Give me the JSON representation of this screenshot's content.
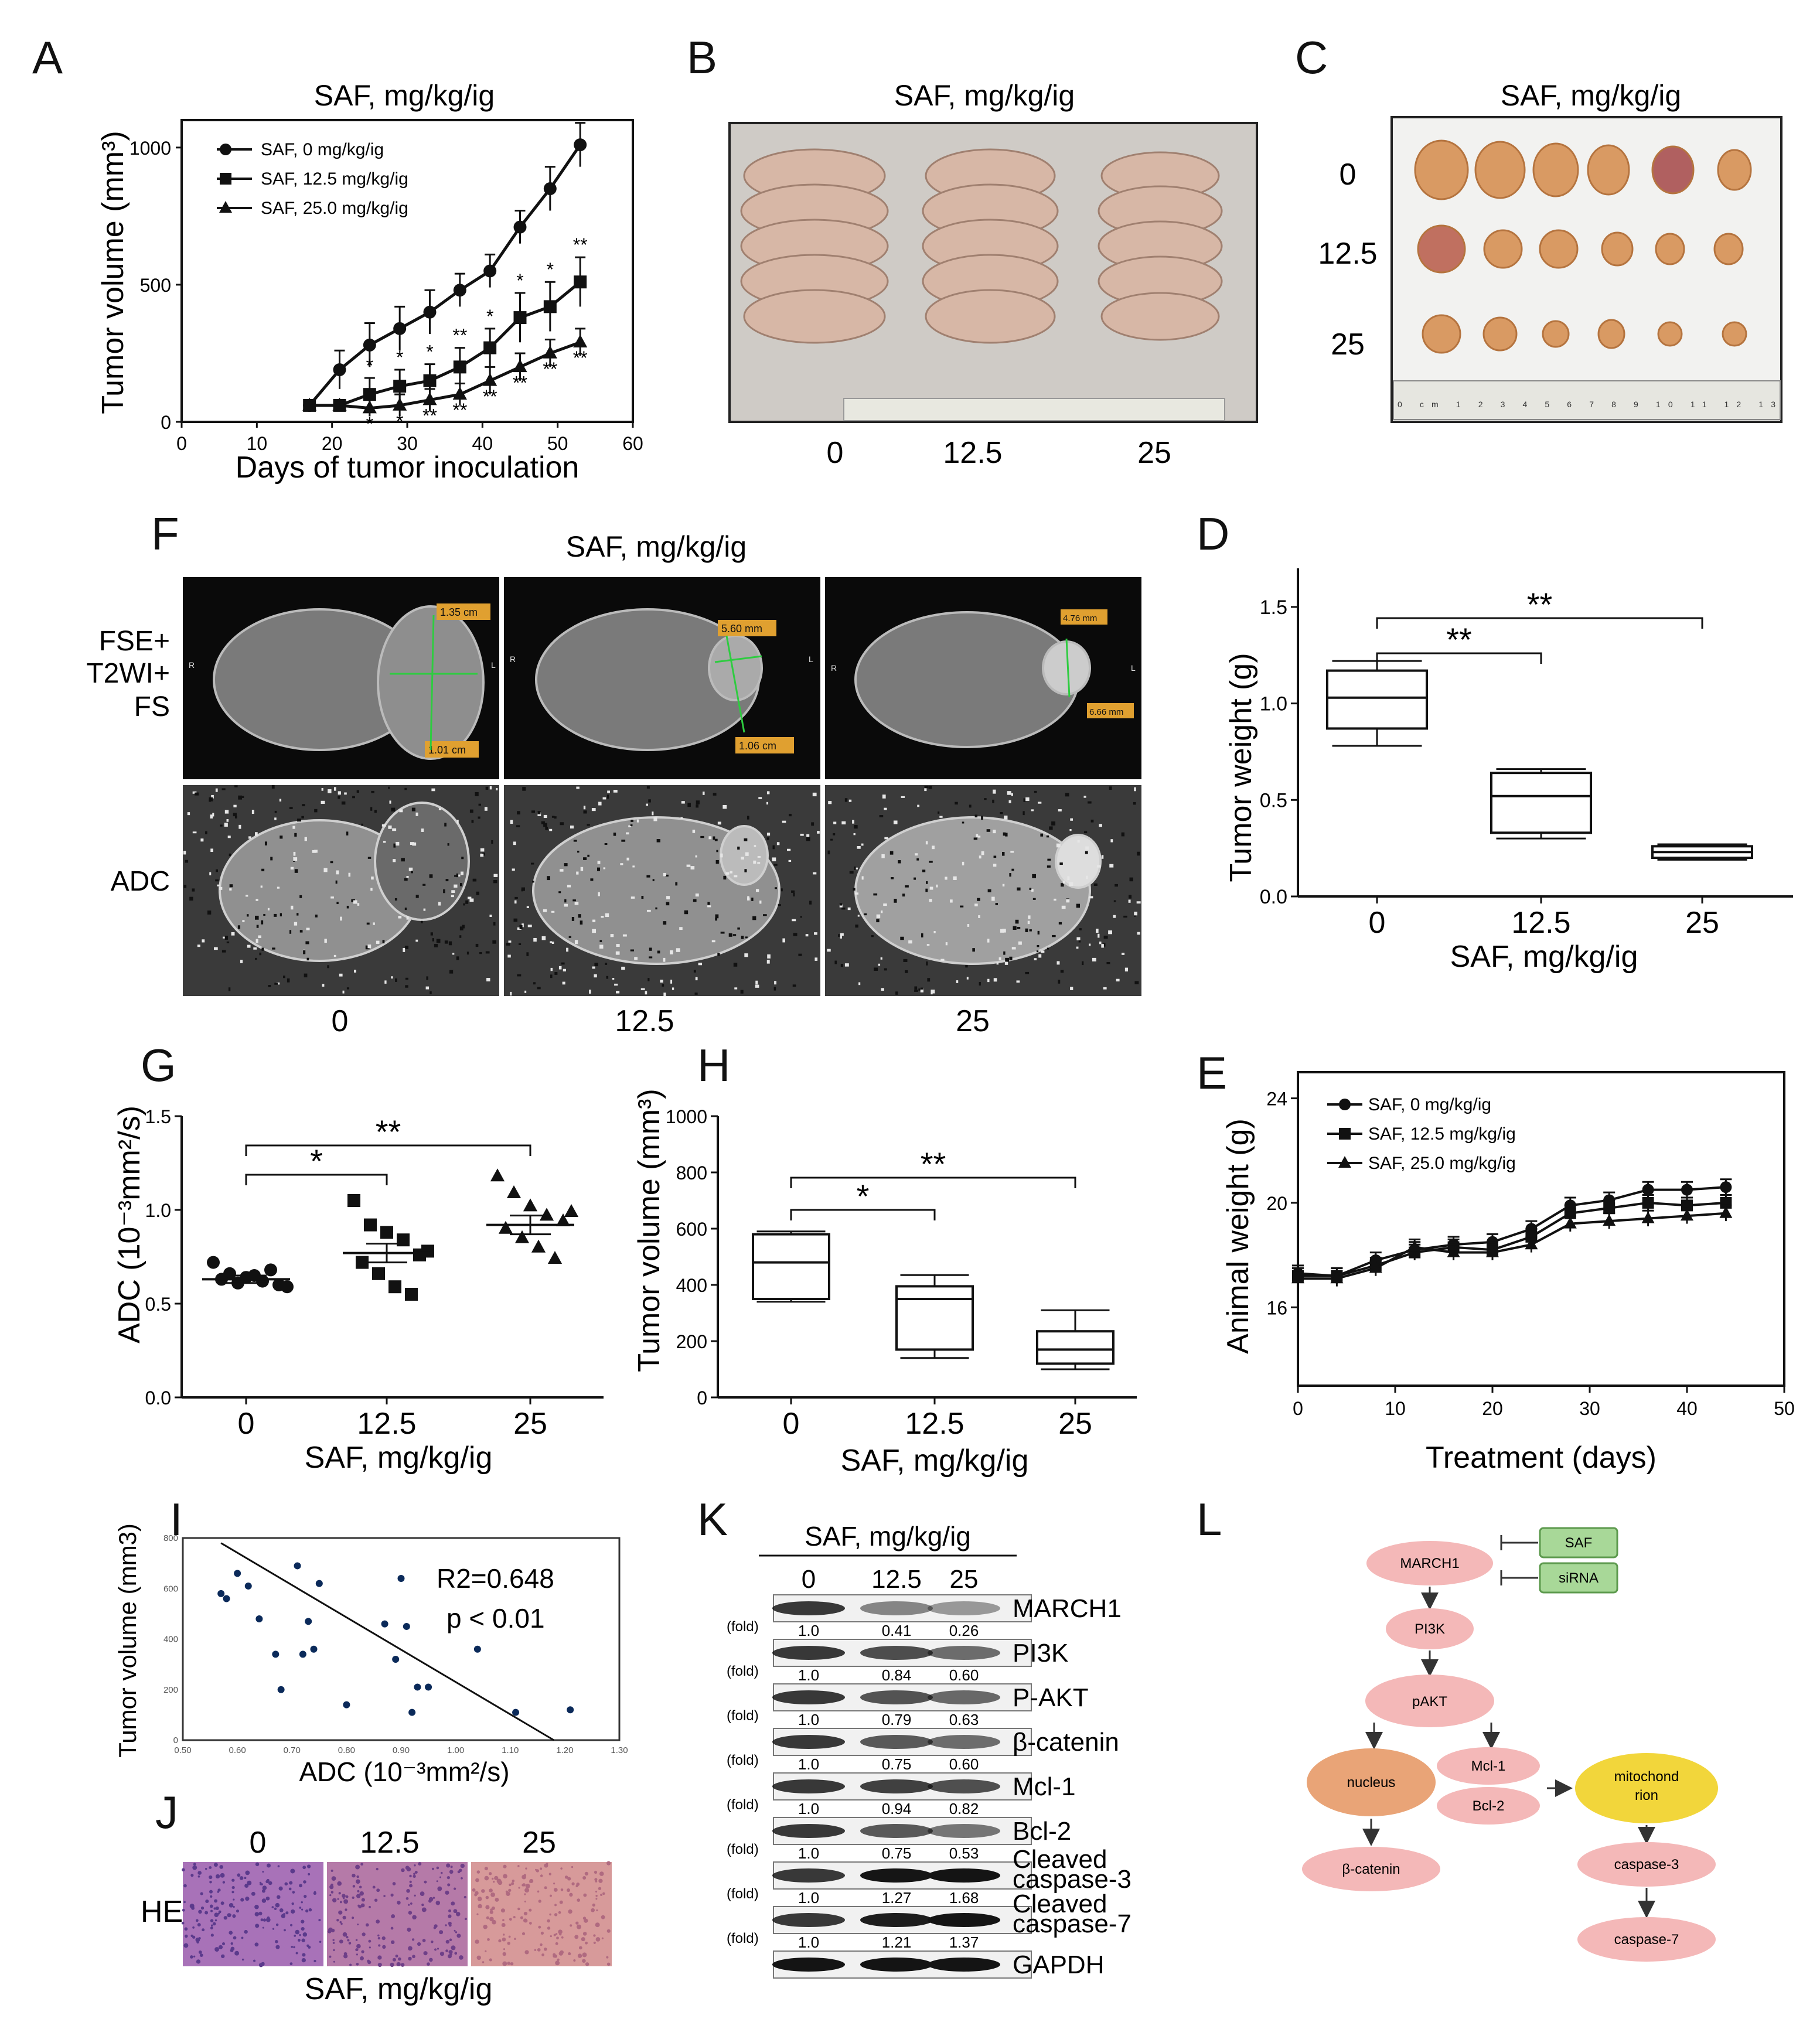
{
  "panel_letters": {
    "A": "A",
    "B": "B",
    "C": "C",
    "D": "D",
    "E": "E",
    "F": "F",
    "G": "G",
    "H": "H",
    "I": "I",
    "J": "J",
    "K": "K",
    "L": "L"
  },
  "common": {
    "saf_title": "SAF, mg/kg/ig",
    "dose_0": "0",
    "dose_12": "12.5",
    "dose_25": "25"
  },
  "panelB": {
    "bottom_labels": [
      "0",
      "12.5",
      "25"
    ]
  },
  "panelC": {
    "row_labels": [
      "0",
      "12.5",
      "25"
    ],
    "ruler": "0 cm  1  2  3  4  5  6  7  8  9  10  11  12  13"
  },
  "panelF": {
    "row1_label_lines": [
      "FSE+",
      "T2WI+",
      "FS"
    ],
    "row2_label": "ADC",
    "meas": [
      [
        "1.35 cm",
        "1.01 cm"
      ],
      [
        "5.60 mm",
        "1.06 cm"
      ],
      [
        "4.76 mm",
        "6.66 mm"
      ]
    ],
    "side_labels": [
      "R",
      "L"
    ],
    "col_labels": [
      "0",
      "12.5",
      "25"
    ]
  },
  "panelJ": {
    "row_label": "HE",
    "col_labels": [
      "0",
      "12.5",
      "25"
    ],
    "xlabel": "SAF, mg/kg/ig"
  },
  "chart_data": [
    {
      "id": "A",
      "type": "line",
      "title": "SAF, mg/kg/ig",
      "xlabel": "Days of tumor inoculation",
      "ylabel": "Tumor volume (mm³)",
      "xlim": [
        0,
        60
      ],
      "ylim": [
        0,
        1100
      ],
      "xticks": [
        "0",
        "10",
        "20",
        "30",
        "40",
        "50",
        "60"
      ],
      "yticks": [
        "0",
        "500",
        "1000"
      ],
      "legend_position": "top-left",
      "series": [
        {
          "name": "SAF, 0 mg/kg/ig",
          "marker": "circle",
          "x": [
            17,
            21,
            25,
            29,
            33,
            37,
            41,
            45,
            49,
            53
          ],
          "y": [
            60,
            190,
            280,
            340,
            400,
            480,
            550,
            710,
            850,
            1010
          ],
          "err": [
            10,
            70,
            80,
            80,
            80,
            60,
            60,
            60,
            80,
            80
          ]
        },
        {
          "name": "SAF, 12.5 mg/kg/ig",
          "marker": "square",
          "x": [
            17,
            21,
            25,
            29,
            33,
            37,
            41,
            45,
            49,
            53
          ],
          "y": [
            60,
            60,
            100,
            130,
            150,
            200,
            270,
            380,
            420,
            510
          ],
          "err": [
            10,
            10,
            60,
            60,
            60,
            70,
            70,
            90,
            90,
            90
          ],
          "sig": [
            "",
            "",
            "*",
            "*",
            "*",
            "**",
            "*",
            "*",
            "*",
            "**"
          ]
        },
        {
          "name": "SAF, 25.0 mg/kg/ig",
          "marker": "triangle",
          "x": [
            17,
            21,
            25,
            29,
            33,
            37,
            41,
            45,
            49,
            53
          ],
          "y": [
            60,
            60,
            50,
            60,
            80,
            100,
            150,
            200,
            250,
            290
          ],
          "err": [
            10,
            10,
            30,
            40,
            40,
            40,
            50,
            50,
            50,
            50
          ],
          "sig": [
            "",
            "",
            "*",
            "*",
            "**",
            "**",
            "**",
            "**",
            "**",
            "**"
          ]
        }
      ]
    },
    {
      "id": "D",
      "type": "box",
      "categories": [
        "0",
        "12.5",
        "25"
      ],
      "xlabel": "SAF, mg/kg/ig",
      "ylabel": "Tumor weight (g)",
      "ylim": [
        0,
        1.7
      ],
      "yticks": [
        "0.0",
        "0.5",
        "1.0",
        "1.5"
      ],
      "boxes": [
        {
          "min": 0.78,
          "q1": 0.87,
          "median": 1.03,
          "q3": 1.17,
          "max": 1.22
        },
        {
          "min": 0.3,
          "q1": 0.33,
          "median": 0.52,
          "q3": 0.64,
          "max": 0.66
        },
        {
          "min": 0.19,
          "q1": 0.2,
          "median": 0.23,
          "q3": 0.26,
          "max": 0.27
        }
      ],
      "brackets": [
        {
          "from": 0,
          "to": 1,
          "label": "**"
        },
        {
          "from": 0,
          "to": 2,
          "label": "**"
        }
      ]
    },
    {
      "id": "E",
      "type": "line",
      "xlabel": "Treatment (days)",
      "ylabel": "Animal weight (g)",
      "xlim": [
        0,
        50
      ],
      "ylim": [
        13,
        25
      ],
      "xticks": [
        "0",
        "10",
        "20",
        "30",
        "40",
        "50"
      ],
      "yticks": [
        "16",
        "20",
        "24"
      ],
      "legend_position": "top-left",
      "series": [
        {
          "name": "SAF, 0 mg/kg/ig",
          "marker": "circle",
          "x": [
            0,
            4,
            8,
            12,
            16,
            20,
            24,
            28,
            32,
            36,
            40,
            44
          ],
          "y": [
            17.3,
            17.2,
            17.8,
            18.2,
            18.4,
            18.5,
            19.0,
            19.9,
            20.1,
            20.5,
            20.5,
            20.6
          ]
        },
        {
          "name": "SAF, 12.5 mg/kg/ig",
          "marker": "square",
          "x": [
            0,
            4,
            8,
            12,
            16,
            20,
            24,
            28,
            32,
            36,
            40,
            44
          ],
          "y": [
            17.2,
            17.2,
            17.6,
            18.1,
            18.3,
            18.2,
            18.7,
            19.6,
            19.8,
            20.0,
            19.9,
            20.0
          ]
        },
        {
          "name": "SAF, 25.0 mg/kg/ig",
          "marker": "triangle",
          "x": [
            0,
            4,
            8,
            12,
            16,
            20,
            24,
            28,
            32,
            36,
            40,
            44
          ],
          "y": [
            17.1,
            17.1,
            17.5,
            18.3,
            18.1,
            18.1,
            18.4,
            19.2,
            19.3,
            19.4,
            19.5,
            19.6
          ]
        }
      ]
    },
    {
      "id": "G",
      "type": "scatter",
      "categories": [
        "0",
        "12.5",
        "25"
      ],
      "xlabel": "SAF, mg/kg/ig",
      "ylabel": "ADC (10⁻³mm²/s)",
      "ylim": [
        0,
        1.5
      ],
      "yticks": [
        "0.0",
        "0.5",
        "1.0",
        "1.5"
      ],
      "groups": [
        {
          "marker": "circle",
          "mean": 0.63,
          "sem": 0.02,
          "points": [
            0.72,
            0.66,
            0.64,
            0.62,
            0.6,
            0.63,
            0.61,
            0.65,
            0.68,
            0.59
          ]
        },
        {
          "marker": "square",
          "mean": 0.77,
          "sem": 0.05,
          "points": [
            1.05,
            0.92,
            0.88,
            0.84,
            0.76,
            0.72,
            0.66,
            0.59,
            0.55,
            0.78
          ]
        },
        {
          "marker": "triangle",
          "mean": 0.92,
          "sem": 0.05,
          "points": [
            1.18,
            1.09,
            1.02,
            0.97,
            0.94,
            0.9,
            0.85,
            0.8,
            0.74,
            0.99
          ]
        }
      ],
      "brackets": [
        {
          "from": 0,
          "to": 1,
          "label": "*"
        },
        {
          "from": 0,
          "to": 2,
          "label": "**"
        }
      ]
    },
    {
      "id": "H",
      "type": "box",
      "categories": [
        "0",
        "12.5",
        "25"
      ],
      "xlabel": "SAF, mg/kg/ig",
      "ylabel": "Tumor volume (mm³)",
      "ylim": [
        0,
        1000
      ],
      "yticks": [
        "0",
        "200",
        "400",
        "600",
        "800",
        "1000"
      ],
      "boxes": [
        {
          "min": 340,
          "q1": 350,
          "median": 480,
          "q3": 580,
          "max": 590
        },
        {
          "min": 140,
          "q1": 170,
          "median": 350,
          "q3": 395,
          "max": 435
        },
        {
          "min": 100,
          "q1": 120,
          "median": 170,
          "q3": 235,
          "max": 310
        }
      ],
      "brackets": [
        {
          "from": 0,
          "to": 1,
          "label": "*"
        },
        {
          "from": 0,
          "to": 2,
          "label": "**"
        }
      ]
    },
    {
      "id": "I",
      "type": "scatter",
      "xlabel": "ADC (10⁻³mm²/s)",
      "ylabel": "Tumor volume (mm3)",
      "xlim": [
        0.5,
        1.3
      ],
      "ylim": [
        0,
        800
      ],
      "xticks": [
        "0.50",
        "0.60",
        "0.70",
        "0.80",
        "0.90",
        "1.00",
        "1.10",
        "1.20",
        "1.30"
      ],
      "yticks": [
        "0",
        "200",
        "400",
        "600",
        "800"
      ],
      "annotation": [
        "R2=0.648",
        "p < 0.01"
      ],
      "fit": {
        "x": [
          0.57,
          1.18
        ],
        "y": [
          780,
          0
        ]
      },
      "points": [
        [
          0.57,
          580
        ],
        [
          0.58,
          560
        ],
        [
          0.6,
          660
        ],
        [
          0.62,
          610
        ],
        [
          0.64,
          480
        ],
        [
          0.67,
          340
        ],
        [
          0.71,
          690
        ],
        [
          0.72,
          340
        ],
        [
          0.73,
          470
        ],
        [
          0.74,
          360
        ],
        [
          0.75,
          620
        ],
        [
          0.87,
          460
        ],
        [
          0.89,
          320
        ],
        [
          0.9,
          640
        ],
        [
          0.91,
          450
        ],
        [
          0.93,
          210
        ],
        [
          0.95,
          210
        ],
        [
          1.04,
          360
        ],
        [
          1.11,
          110
        ],
        [
          1.21,
          120
        ],
        [
          0.8,
          140
        ],
        [
          0.68,
          200
        ],
        [
          0.92,
          110
        ]
      ]
    },
    {
      "id": "K",
      "type": "table",
      "title": "SAF, mg/kg/ig",
      "columns": [
        "0",
        "12.5",
        "25"
      ],
      "fold_label": "(fold)",
      "rows": [
        {
          "protein": "MARCH1",
          "fold": [
            "1.0",
            "0.41",
            "0.26"
          ]
        },
        {
          "protein": "PI3K",
          "fold": [
            "1.0",
            "0.84",
            "0.60"
          ]
        },
        {
          "protein": "P-AKT",
          "fold": [
            "1.0",
            "0.79",
            "0.63"
          ]
        },
        {
          "protein": "β-catenin",
          "fold": [
            "1.0",
            "0.75",
            "0.60"
          ]
        },
        {
          "protein": "Mcl-1",
          "fold": [
            "1.0",
            "0.94",
            "0.82"
          ]
        },
        {
          "protein": "Bcl-2",
          "fold": [
            "1.0",
            "0.75",
            "0.53"
          ]
        },
        {
          "protein": "Cleaved caspase-3",
          "fold": [
            "1.0",
            "1.27",
            "1.68"
          ]
        },
        {
          "protein": "Cleaved caspase-7",
          "fold": [
            "1.0",
            "1.21",
            "1.37"
          ]
        },
        {
          "protein": "GAPDH",
          "fold": []
        }
      ]
    }
  ],
  "panelL": {
    "nodes": {
      "march1": "MARCH1",
      "saf": "SAF",
      "sirna": "siRNA",
      "pi3k": "PI3K",
      "pakt": "pAKT",
      "nucleus": "nucleus",
      "mcl1": "Mcl-1",
      "bcl2": "Bcl-2",
      "mito_1": "mitochond",
      "mito_2": "rion",
      "bcat": "β-catenin",
      "casp3": "caspase-3",
      "casp7": "caspase-7"
    },
    "colors": {
      "pink": "#f4b8b8",
      "orange": "#e9a477",
      "yellow": "#f2d63b",
      "green": "#a8d898",
      "green_border": "#5d9a4e"
    }
  }
}
